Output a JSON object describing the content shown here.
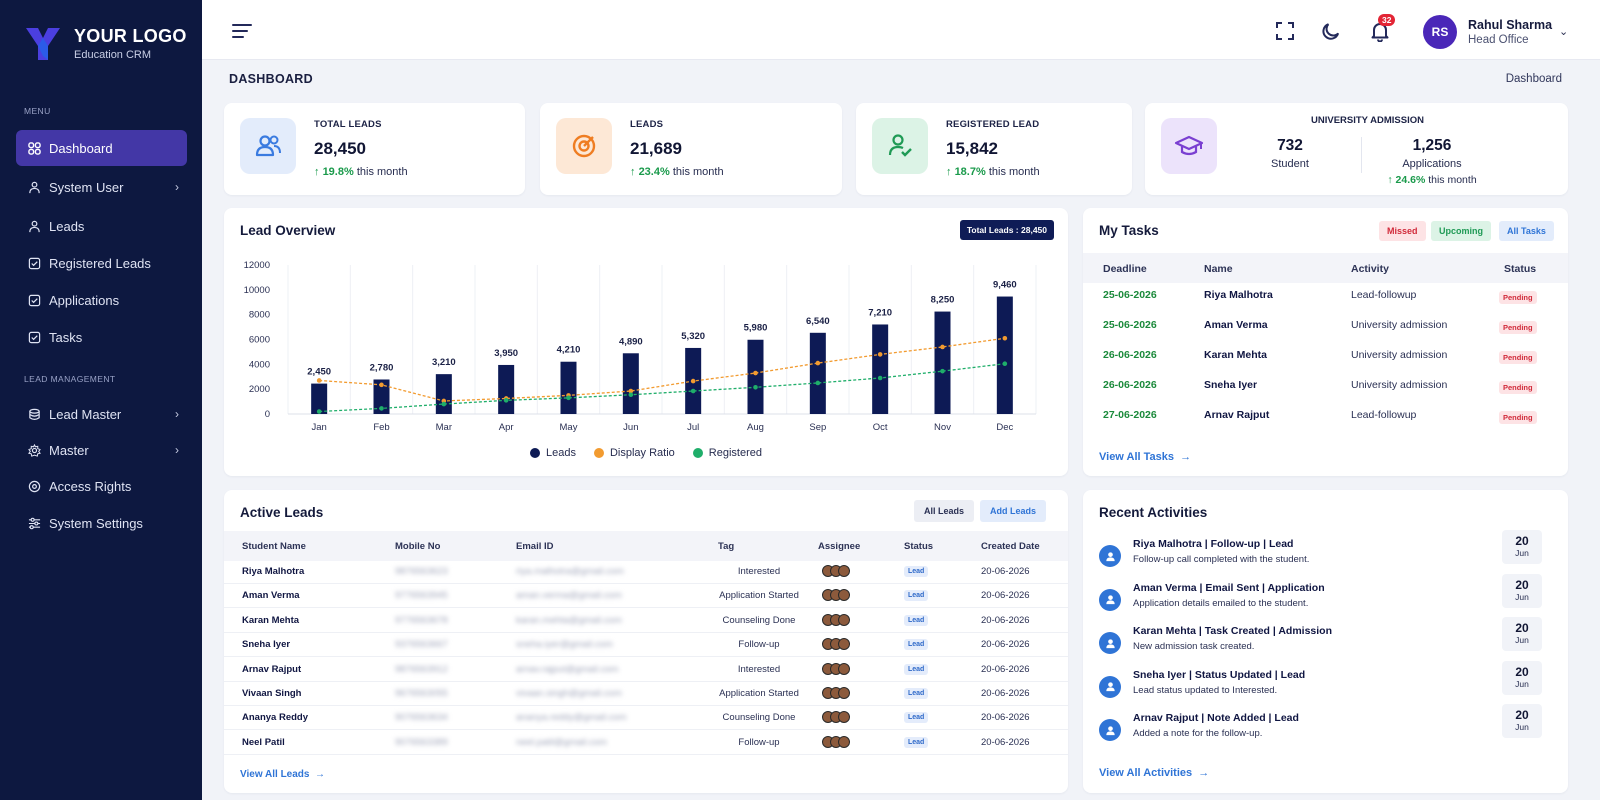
{
  "brand": {
    "title": "YOUR LOGO",
    "subtitle": "Education CRM"
  },
  "sidebar": {
    "menu_heading": "MENU",
    "lead_mgmt_heading": "LEAD MANAGEMENT",
    "items": [
      {
        "label": "Dashboard",
        "icon": "grid-icon",
        "active": true
      },
      {
        "label": "System User",
        "icon": "users-icon",
        "has_submenu": true
      },
      {
        "label": "Leads",
        "icon": "user-icon"
      },
      {
        "label": "Registered Leads",
        "icon": "checkbox-icon"
      },
      {
        "label": "Applications",
        "icon": "checkbox-icon"
      },
      {
        "label": "Tasks",
        "icon": "checkbox-icon"
      },
      {
        "label": "Lead Master",
        "icon": "database-icon",
        "has_submenu": true
      },
      {
        "label": "Master",
        "icon": "gear-icon",
        "has_submenu": true
      },
      {
        "label": "Access Rights",
        "icon": "target-icon"
      },
      {
        "label": "System Settings",
        "icon": "sliders-icon"
      }
    ]
  },
  "header": {
    "notification_count": "32",
    "user_initials": "RS",
    "user_name": "Rahul Sharma",
    "user_role": "Head Office"
  },
  "page": {
    "title": "DASHBOARD",
    "breadcrumb": "Dashboard"
  },
  "stats": [
    {
      "label": "TOTAL LEADS",
      "value": "28,450",
      "trend": "19.8%",
      "trend_suffix": " this month",
      "icon": "people-icon",
      "bg": "#e3ecfb",
      "color": "#3a7be0"
    },
    {
      "label": "LEADS",
      "value": "21,689",
      "trend": "23.4%",
      "trend_suffix": " this month",
      "icon": "target-icon",
      "bg": "#fde8d6",
      "color": "#ef7d22"
    },
    {
      "label": "REGISTERED LEAD",
      "value": "15,842",
      "trend": "18.7%",
      "trend_suffix": " this month",
      "icon": "user-check-icon",
      "bg": "#dcf3e6",
      "color": "#1f9a55"
    }
  ],
  "university": {
    "title": "UNIVERSITY ADMISSION",
    "student_value": "732",
    "student_label": "Student",
    "app_value": "1,256",
    "app_label": "Applications",
    "trend": "24.6%",
    "trend_suffix": " this month"
  },
  "lead_overview": {
    "title": "Lead Overview",
    "total_chip": "Total Leads : 28,450",
    "legend": [
      "Leads",
      "Display Ratio",
      "Registered"
    ]
  },
  "chart_data": {
    "type": "bar",
    "categories": [
      "Jan",
      "Feb",
      "Mar",
      "Apr",
      "May",
      "Jun",
      "Jul",
      "Aug",
      "Sep",
      "Oct",
      "Nov",
      "Dec"
    ],
    "series": [
      {
        "name": "Leads",
        "type": "bar",
        "color": "#0d1a55",
        "values": [
          2450,
          2780,
          3210,
          3950,
          4210,
          4890,
          5320,
          5980,
          6540,
          7210,
          8250,
          9460
        ]
      },
      {
        "name": "Display Ratio",
        "type": "line",
        "color": "#f29b30",
        "values": [
          2700,
          2350,
          1050,
          1250,
          1500,
          1850,
          2650,
          3300,
          4100,
          4800,
          5400,
          6100
        ]
      },
      {
        "name": "Registered",
        "type": "line",
        "color": "#1fae6a",
        "values": [
          200,
          450,
          800,
          1100,
          1300,
          1550,
          1850,
          2150,
          2500,
          2900,
          3450,
          4050
        ]
      }
    ],
    "data_labels": [
      "2,450",
      "2,780",
      "3,210",
      "3,950",
      "4,210",
      "4,890",
      "5,320",
      "5,980",
      "6,540",
      "7,210",
      "8,250",
      "9,460"
    ],
    "yticks": [
      "12000",
      "10000",
      "8000",
      "6000",
      "4000",
      "2000",
      "0"
    ],
    "ylim": [
      0,
      12000
    ],
    "grid": "vertical",
    "legend_position": "bottom"
  },
  "tasks": {
    "title": "My Tasks",
    "filters": [
      "Missed",
      "Upcoming",
      "All Tasks"
    ],
    "columns": [
      "Deadline",
      "Name",
      "Activity",
      "Status"
    ],
    "rows": [
      {
        "deadline": "25-06-2026",
        "name": "Riya Malhotra",
        "activity": "Lead-followup",
        "status": "Pending"
      },
      {
        "deadline": "25-06-2026",
        "name": "Aman Verma",
        "activity": "University admission",
        "status": "Pending"
      },
      {
        "deadline": "26-06-2026",
        "name": "Karan Mehta",
        "activity": "University admission",
        "status": "Pending"
      },
      {
        "deadline": "26-06-2026",
        "name": "Sneha Iyer",
        "activity": "University admission",
        "status": "Pending"
      },
      {
        "deadline": "27-06-2026",
        "name": "Arnav Rajput",
        "activity": "Lead-followup",
        "status": "Pending"
      }
    ],
    "view_all": "View All Tasks"
  },
  "active_leads": {
    "title": "Active Leads",
    "buttons": [
      "All Leads",
      "Add Leads"
    ],
    "columns": [
      "Student Name",
      "Mobile No",
      "Email ID",
      "Tag",
      "Assignee",
      "Status",
      "Created Date"
    ],
    "rows": [
      {
        "name": "Riya Malhotra",
        "mobile": "9876563623",
        "email": "riya.malhotra@gmail.com",
        "tag": "Interested",
        "status": "Lead",
        "date": "20-06-2026"
      },
      {
        "name": "Aman Verma",
        "mobile": "9776563945",
        "email": "aman.verma@gmail.com",
        "tag": "Application Started",
        "status": "Lead",
        "date": "20-06-2026"
      },
      {
        "name": "Karan Mehta",
        "mobile": "9776563678",
        "email": "karan.mehta@gmail.com",
        "tag": "Counseling Done",
        "status": "Lead",
        "date": "20-06-2026"
      },
      {
        "name": "Sneha Iyer",
        "mobile": "9376563667",
        "email": "sneha.iyer@gmail.com",
        "tag": "Follow-up",
        "status": "Lead",
        "date": "20-06-2026"
      },
      {
        "name": "Arnav Rajput",
        "mobile": "9876563912",
        "email": "arnav.rajput@gmail.com",
        "tag": "Interested",
        "status": "Lead",
        "date": "20-06-2026"
      },
      {
        "name": "Vivaan Singh",
        "mobile": "9676563055",
        "email": "vivaan.singh@gmail.com",
        "tag": "Application Started",
        "status": "Lead",
        "date": "20-06-2026"
      },
      {
        "name": "Ananya Reddy",
        "mobile": "9076563634",
        "email": "ananya.reddy@gmail.com",
        "tag": "Counseling Done",
        "status": "Lead",
        "date": "20-06-2026"
      },
      {
        "name": "Neel Patil",
        "mobile": "9076563389",
        "email": "neel.patil@gmail.com",
        "tag": "Follow-up",
        "status": "Lead",
        "date": "20-06-2026"
      }
    ],
    "view_all": "View All Leads"
  },
  "activities": {
    "title": "Recent Activities",
    "items": [
      {
        "title": "Riya Malhotra | Follow-up | Lead",
        "desc": "Follow-up call completed with the student.",
        "day": "20",
        "month": "Jun"
      },
      {
        "title": "Aman Verma | Email Sent | Application",
        "desc": "Application details emailed to the student.",
        "day": "20",
        "month": "Jun"
      },
      {
        "title": "Karan Mehta | Task Created | Admission",
        "desc": "New admission task created.",
        "day": "20",
        "month": "Jun"
      },
      {
        "title": "Sneha Iyer | Status Updated | Lead",
        "desc": "Lead status updated to Interested.",
        "day": "20",
        "month": "Jun"
      },
      {
        "title": "Arnav Rajput | Note Added | Lead",
        "desc": "Added a note for the follow-up.",
        "day": "20",
        "month": "Jun"
      }
    ],
    "view_all": "View All Activities"
  }
}
